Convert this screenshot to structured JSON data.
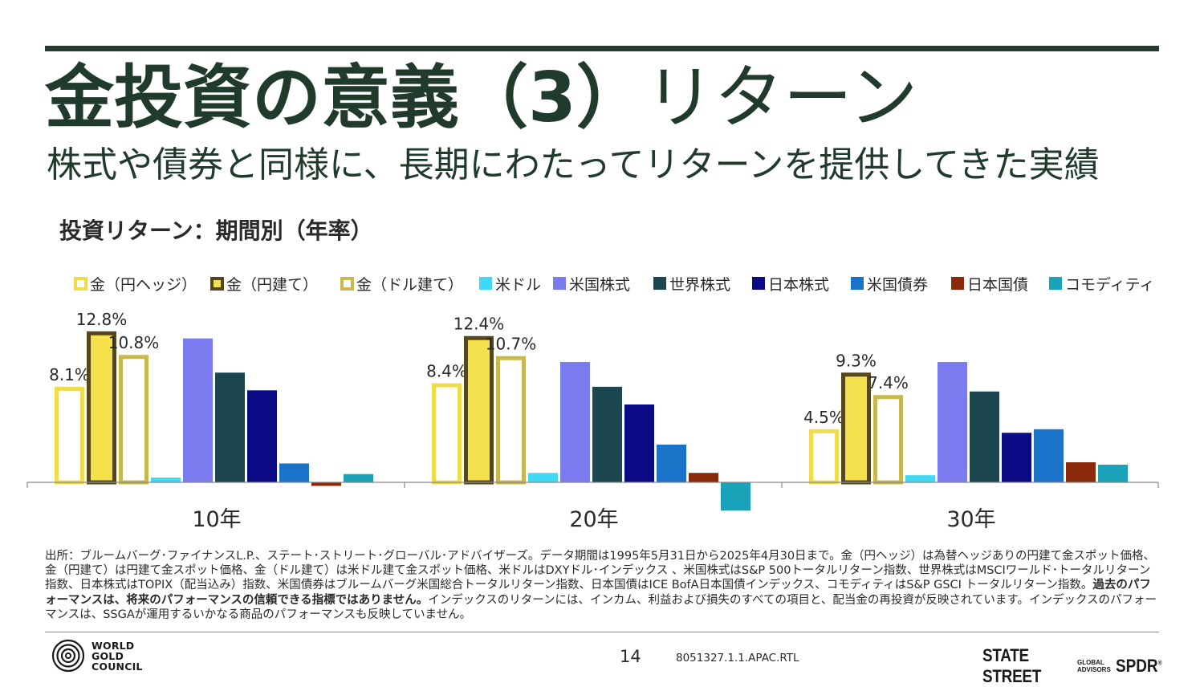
{
  "header": {
    "title_bold": "金投資の意義（3）",
    "title_rest": "リターン",
    "subtitle": "株式や債券と同様に、長期にわたってリターンを提供してきた実績"
  },
  "section_title": "投資リターン：期間別（年率）",
  "chart_data": {
    "type": "bar",
    "categories": [
      "10年",
      "20年",
      "30年"
    ],
    "ylim": [
      -3,
      15
    ],
    "series": [
      {
        "name": "金（円ヘッジ）",
        "values": [
          8.1,
          8.4,
          4.5
        ],
        "fill": "#ffffff",
        "stroke": "#f0dc4a",
        "style": "outline",
        "label": true
      },
      {
        "name": "金（円建て）",
        "values": [
          12.8,
          12.4,
          9.3
        ],
        "fill": "#f5e04e",
        "stroke": "#55471a",
        "style": "filled-outline",
        "label": true
      },
      {
        "name": "金（ドル建て）",
        "values": [
          10.8,
          10.7,
          7.4
        ],
        "fill": "#ffffff",
        "stroke": "#c8b850",
        "style": "outline",
        "label": true
      },
      {
        "name": "米ドル",
        "values": [
          0.4,
          0.8,
          0.6
        ],
        "fill": "#3fd8f5",
        "style": "solid",
        "label": false
      },
      {
        "name": "米国株式",
        "values": [
          12.2,
          10.2,
          10.2
        ],
        "fill": "#7b7bf0",
        "style": "solid",
        "label": false
      },
      {
        "name": "世界株式",
        "values": [
          9.3,
          8.1,
          7.7
        ],
        "fill": "#1c4650",
        "style": "solid",
        "label": false
      },
      {
        "name": "日本株式",
        "values": [
          7.8,
          6.6,
          4.2
        ],
        "fill": "#0a0a85",
        "style": "solid",
        "label": false
      },
      {
        "name": "米国債券",
        "values": [
          1.6,
          3.2,
          4.5
        ],
        "fill": "#1a73c8",
        "style": "solid",
        "label": false
      },
      {
        "name": "日本国債",
        "values": [
          -0.3,
          0.8,
          1.7
        ],
        "fill": "#8a2a0a",
        "style": "solid",
        "label": false
      },
      {
        "name": "コモディティ",
        "values": [
          0.7,
          -2.4,
          1.5
        ],
        "fill": "#1aa3b8",
        "style": "solid",
        "label": false
      }
    ],
    "legend_position": "top",
    "grid": false
  },
  "source": {
    "text_1": "出所：ブルームバーグ･ファイナンスL.P.、ステート･ストリート･グローバル･アドバイザーズ。データ期間は1995年5月31日から2025年4月30日まで。金（円ヘッジ）は為替ヘッジありの円建て金スポット価格、金（円建て）は円建て金スポット価格、金（ドル建て）は米ドル建て金スポット価格、米ドルはDXYドル･インデックス 、米国株式はS&P 500トータルリターン指数、世界株式はMSCIワールド･トータルリターン指数、日本株式はTOPIX（配当込み）指数、米国債券はブルームバーグ米国総合トータルリターン指数、日本国債はICE BofA日本国債インデックス、コモディティはS&P GSCI トータルリターン指数。",
    "text_bold": "過去のパフォーマンスは、将来のパフォーマンスの信頼できる指標ではありません。",
    "text_2": "インデックスのリターンには、インカム、利益および損失のすべての項目と、配当金の再投資が反映されています。インデックスのパフォーマンスは、SSGAが運用するいかなる商品のパフォーマンスも反映していません。"
  },
  "footer": {
    "wgc_line1": "WORLD",
    "wgc_line2": "GOLD",
    "wgc_line3": "COUNCIL",
    "page_number": "14",
    "doc_code": "8051327.1.1.APAC.RTL",
    "ss_name": "STATE STREET",
    "ss_global": "GLOBAL",
    "ss_advisors": "ADVISORS",
    "spdr": "SPDR",
    "spdr_mark": "®"
  }
}
